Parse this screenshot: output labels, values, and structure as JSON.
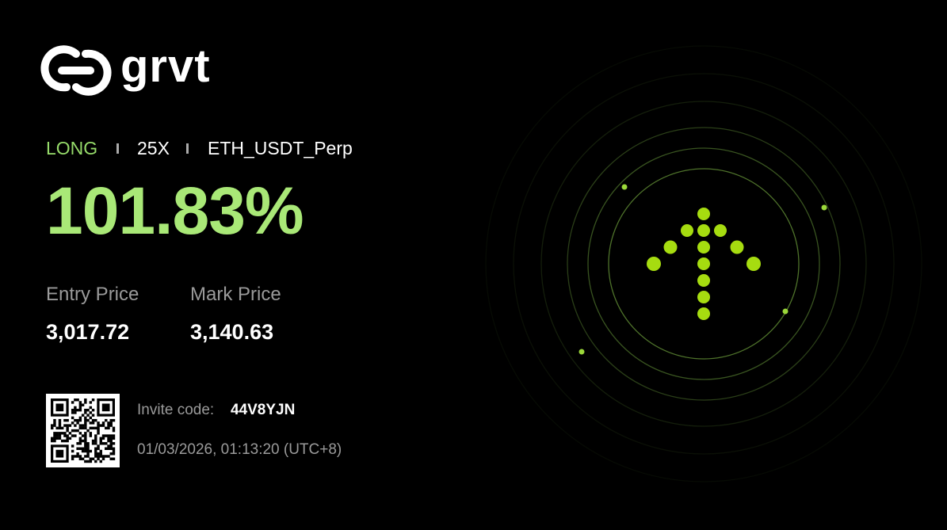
{
  "brand": "grvt",
  "position": {
    "side": "LONG",
    "leverage": "25X",
    "symbol": "ETH_USDT_Perp",
    "pnl": "101.83%"
  },
  "prices": [
    {
      "label": "Entry Price",
      "value": "3,017.72"
    },
    {
      "label": "Mark Price",
      "value": "3,140.63"
    }
  ],
  "invite": {
    "label": "Invite code:",
    "code": "44V8YJN"
  },
  "timestamp": "01/03/2026, 01:13:20 (UTC+8)"
}
